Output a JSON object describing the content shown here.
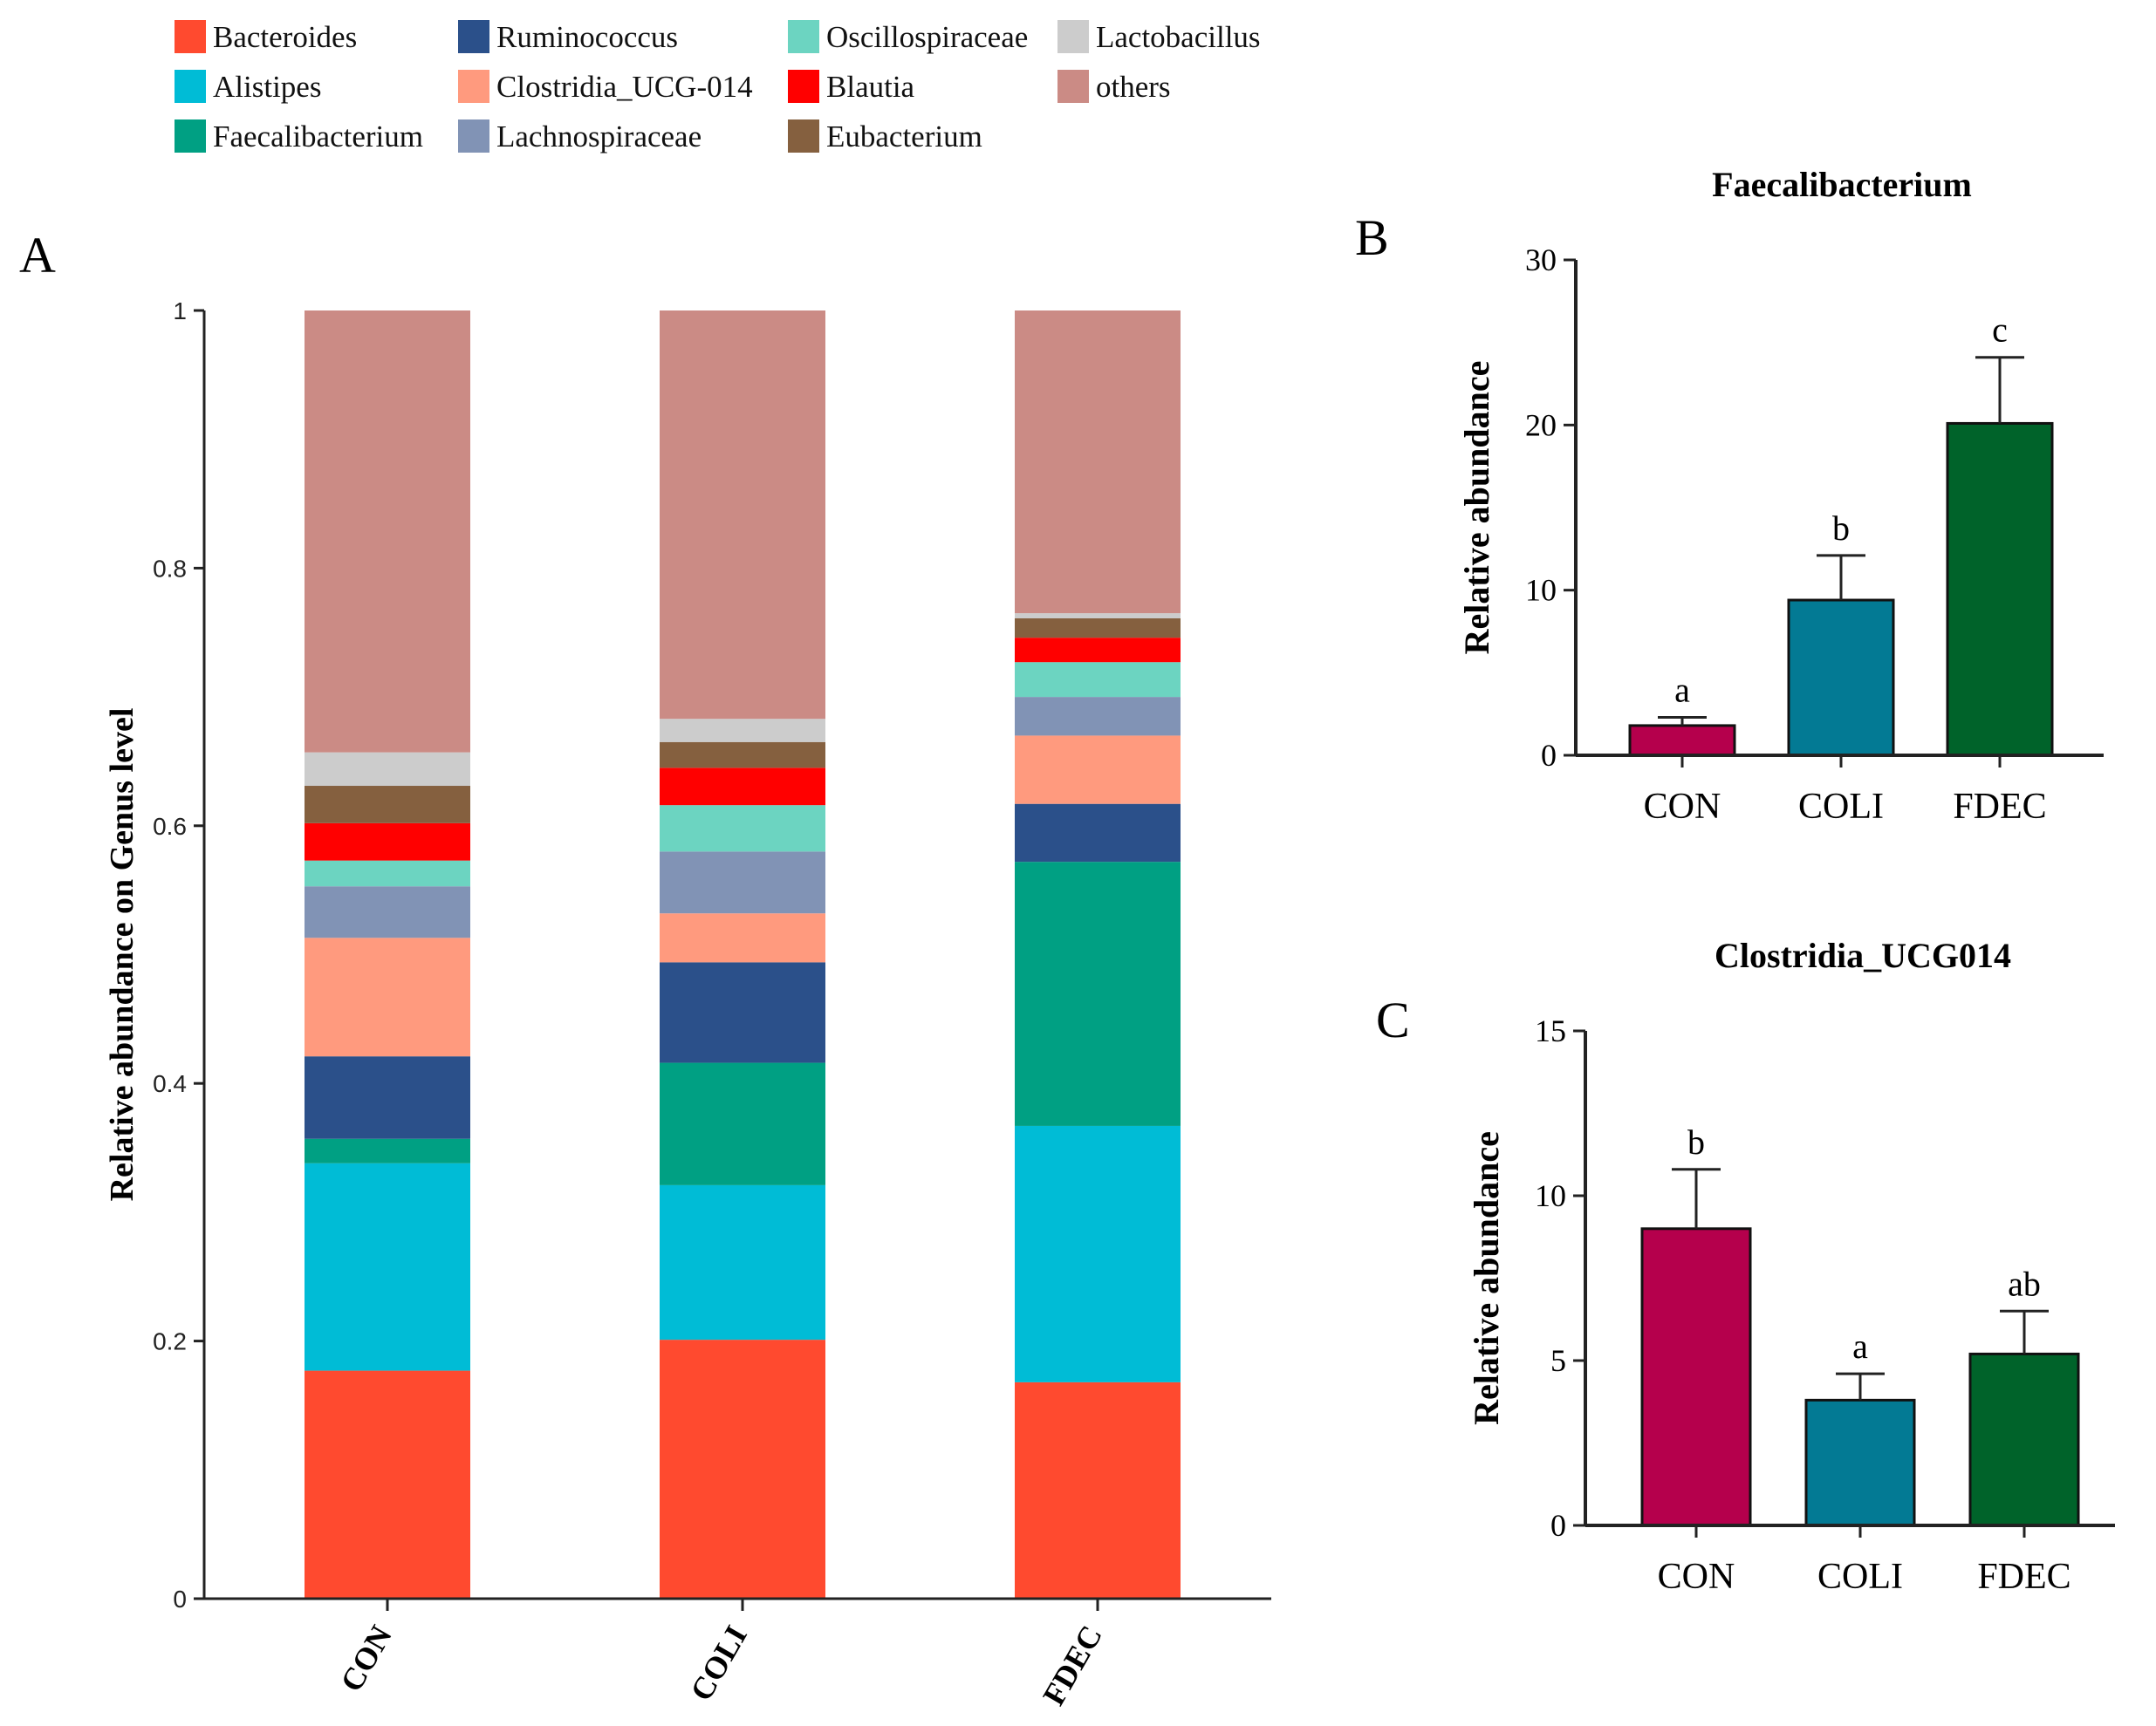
{
  "chart_data": [
    {
      "panel": "A",
      "type": "bar",
      "stacked": true,
      "ylabel": "Relative abundance on Genus level",
      "ylim": [
        0,
        1
      ],
      "yticks": [
        "0",
        "0.2",
        "0.4",
        "0.6",
        "0.8",
        "1"
      ],
      "categories": [
        "CON",
        "COLI",
        "FDEC"
      ],
      "legend_position": "top",
      "series": [
        {
          "name": "Bacteroides",
          "color": "#FF4A2F",
          "values": [
            0.177,
            0.201,
            0.168
          ]
        },
        {
          "name": "Alistipes",
          "color": "#00BCD6",
          "values": [
            0.161,
            0.12,
            0.199
          ]
        },
        {
          "name": "Faecalibacterium",
          "color": "#00A083",
          "values": [
            0.019,
            0.095,
            0.205
          ]
        },
        {
          "name": "Ruminococcus",
          "color": "#2B508A",
          "values": [
            0.064,
            0.078,
            0.045
          ]
        },
        {
          "name": "Clostridia_UCG-014",
          "color": "#FF9A7E",
          "values": [
            0.092,
            0.038,
            0.053
          ]
        },
        {
          "name": "Lachnospiraceae",
          "color": "#8193B5",
          "values": [
            0.04,
            0.048,
            0.03
          ]
        },
        {
          "name": "Oscillospiraceae",
          "color": "#6CD4C1",
          "values": [
            0.02,
            0.036,
            0.027
          ]
        },
        {
          "name": "Blautia",
          "color": "#FF0000",
          "values": [
            0.029,
            0.029,
            0.019
          ]
        },
        {
          "name": "Eubacterium",
          "color": "#85603F",
          "values": [
            0.029,
            0.02,
            0.015
          ]
        },
        {
          "name": "Lactobacillus",
          "color": "#CCCCCC",
          "values": [
            0.026,
            0.018,
            0.004
          ]
        },
        {
          "name": "others",
          "color": "#CB8B85",
          "values": [
            0.343,
            0.317,
            0.235
          ]
        }
      ],
      "legend_order": [
        "Bacteroides",
        "Ruminococcus",
        "Oscillospiraceae",
        "Lactobacillus",
        "Alistipes",
        "Clostridia_UCG-014",
        "Blautia",
        "others",
        "Faecalibacterium",
        "Lachnospiraceae",
        "Eubacterium"
      ]
    },
    {
      "panel": "B",
      "type": "bar",
      "title": "Faecalibacterium",
      "ylabel": "Relative abundance",
      "ylim": [
        0,
        30
      ],
      "yticks": [
        "0",
        "10",
        "20",
        "30"
      ],
      "categories": [
        "CON",
        "COLI",
        "FDEC"
      ],
      "values": [
        1.8,
        9.4,
        20.1
      ],
      "errors": [
        0.5,
        2.7,
        4.0
      ],
      "letters": [
        "a",
        "b",
        "c"
      ],
      "colors": [
        "#B5004C",
        "#037A94",
        "#00632A"
      ]
    },
    {
      "panel": "C",
      "type": "bar",
      "title": "Clostridia_UCG014",
      "ylabel": "Relative abundance",
      "ylim": [
        0,
        15
      ],
      "yticks": [
        "0",
        "5",
        "10",
        "15"
      ],
      "categories": [
        "CON",
        "COLI",
        "FDEC"
      ],
      "values": [
        9.0,
        3.8,
        5.2
      ],
      "errors": [
        1.8,
        0.8,
        1.3
      ],
      "letters": [
        "b",
        "a",
        "ab"
      ],
      "colors": [
        "#B5004C",
        "#037A94",
        "#00632A"
      ]
    }
  ]
}
